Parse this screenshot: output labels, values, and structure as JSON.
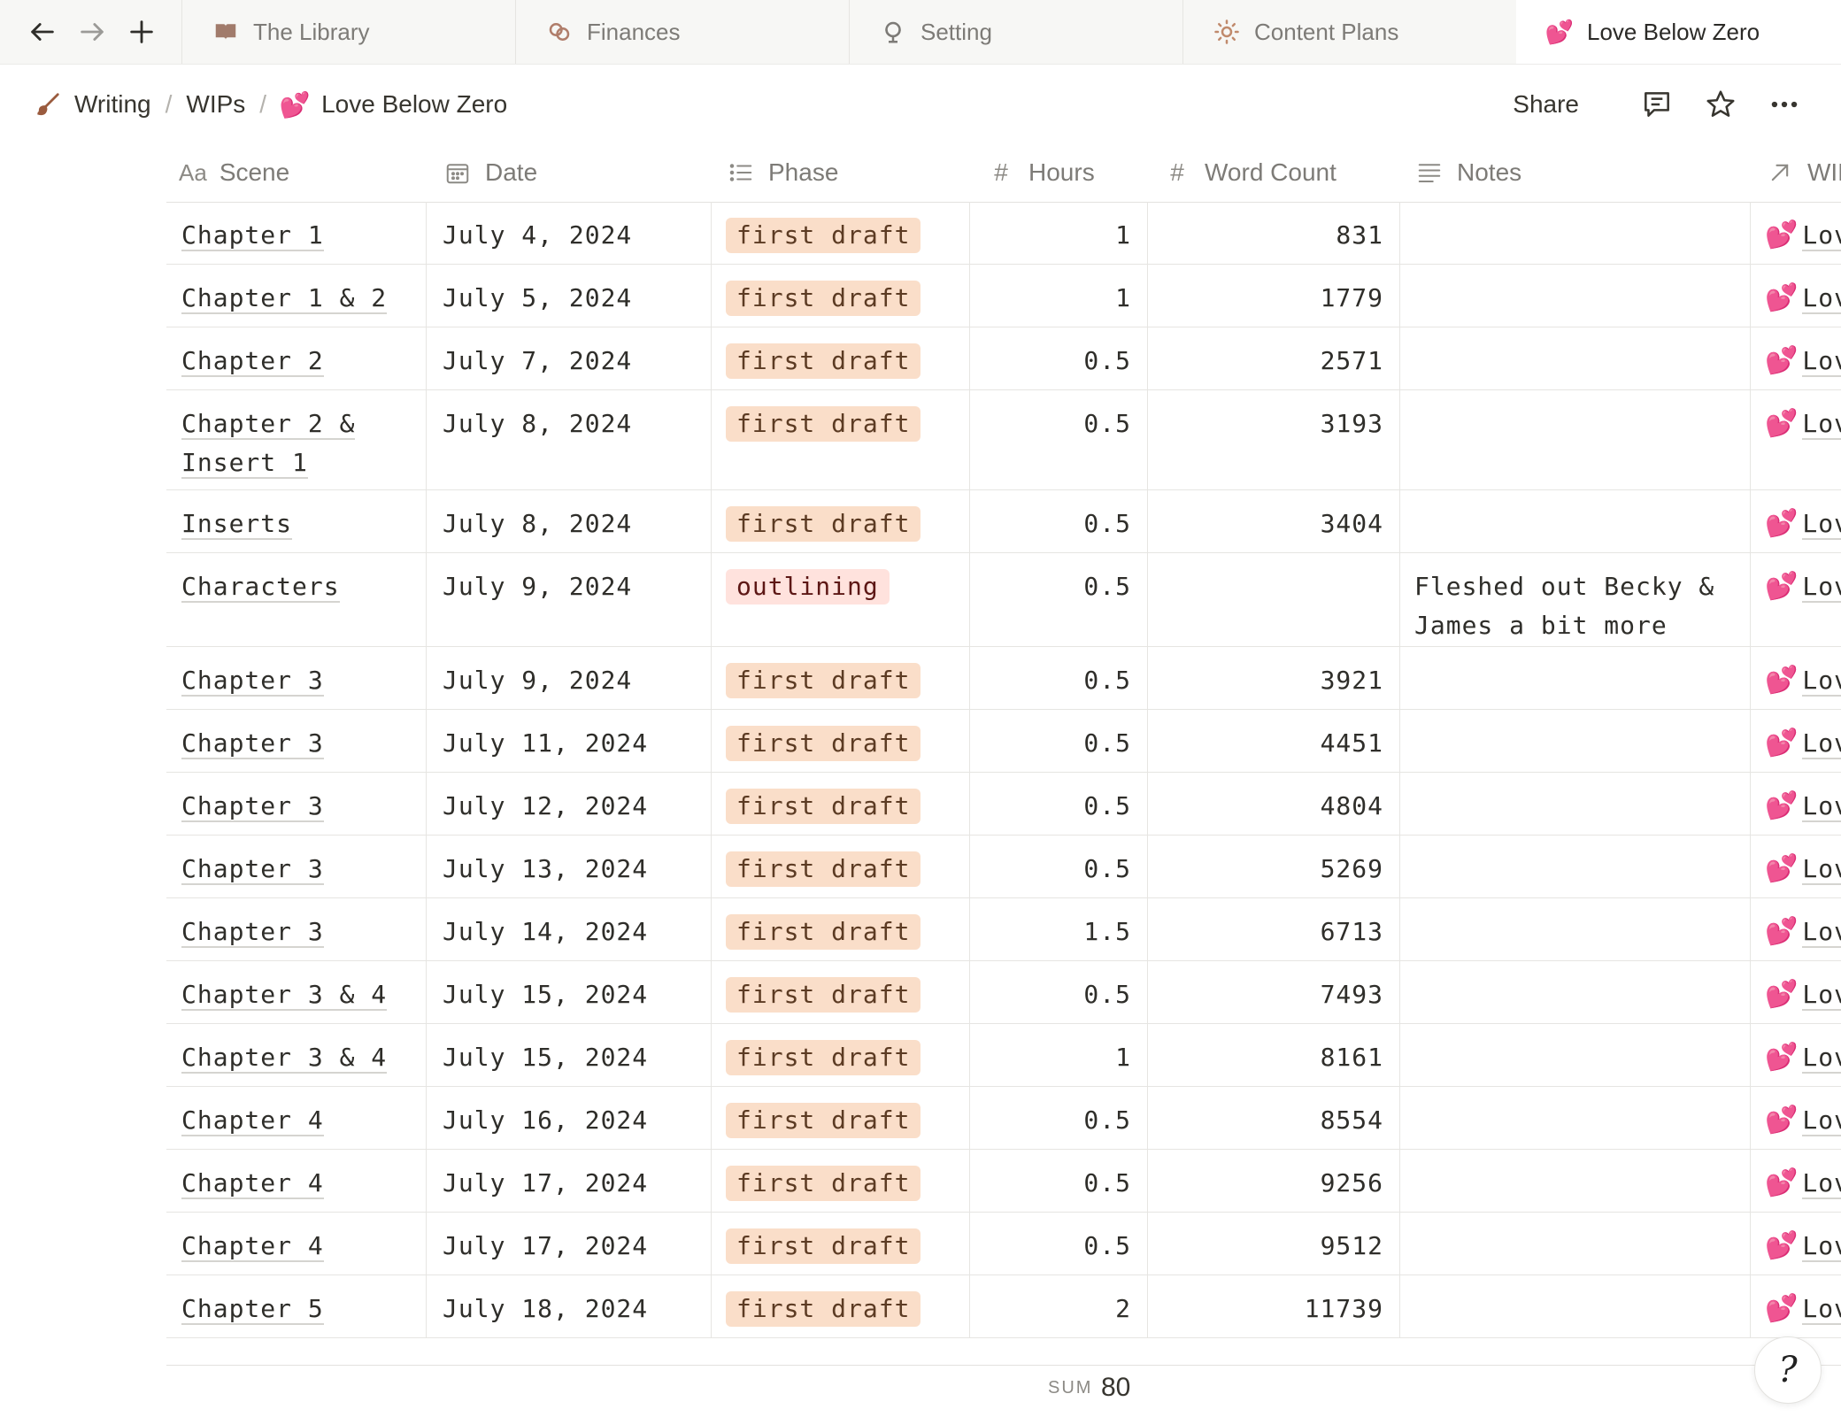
{
  "nav": {
    "back_icon": "arrow-left-icon",
    "forward_icon": "arrow-right-icon",
    "new_tab_icon": "plus-icon"
  },
  "tabs": [
    {
      "label": "The Library",
      "icon": "book-icon"
    },
    {
      "label": "Finances",
      "icon": "coins-icon"
    },
    {
      "label": "Setting",
      "icon": "globe-icon"
    },
    {
      "label": "Content Plans",
      "icon": "sun-icon"
    },
    {
      "label": "Love Below Zero",
      "icon": "💕"
    }
  ],
  "breadcrumb": {
    "items": [
      {
        "label": "Writing",
        "icon": "paintbrush-icon"
      },
      {
        "label": "WIPs"
      },
      {
        "label": "Love Below Zero",
        "icon": "💕"
      }
    ],
    "separator": "/"
  },
  "header": {
    "share_label": "Share",
    "comment_icon": "comment-icon",
    "favorite_icon": "star-icon",
    "more_icon": "more-icon"
  },
  "columns": [
    {
      "label": "Scene",
      "icon": "Aa"
    },
    {
      "label": "Date",
      "icon": "calendar-icon"
    },
    {
      "label": "Phase",
      "icon": "list-icon"
    },
    {
      "label": "Hours",
      "icon": "#"
    },
    {
      "label": "Word Count",
      "icon": "#"
    },
    {
      "label": "Notes",
      "icon": "lines-icon"
    },
    {
      "label": "WIP",
      "icon": "arrow-up-right-icon"
    }
  ],
  "phase_colors": {
    "first draft": {
      "bg": "#fadec9",
      "fg": "#5c3b23"
    },
    "outlining": {
      "bg": "#ffe2dd",
      "fg": "#5d1715"
    }
  },
  "rows": [
    {
      "scene": [
        "Chapter 1"
      ],
      "date": "July 4, 2024",
      "phase": "first draft",
      "hours": "1",
      "words": "831",
      "notes": [],
      "wip": "Love Below Zero",
      "wip_icon": "💕"
    },
    {
      "scene": [
        "Chapter 1 & 2"
      ],
      "date": "July 5, 2024",
      "phase": "first draft",
      "hours": "1",
      "words": "1779",
      "notes": [],
      "wip": "Love Below Zero",
      "wip_icon": "💕"
    },
    {
      "scene": [
        "Chapter 2"
      ],
      "date": "July 7, 2024",
      "phase": "first draft",
      "hours": "0.5",
      "words": "2571",
      "notes": [],
      "wip": "Love Below Zero",
      "wip_icon": "💕"
    },
    {
      "scene": [
        "Chapter 2 &",
        "Insert 1"
      ],
      "date": "July 8, 2024",
      "phase": "first draft",
      "hours": "0.5",
      "words": "3193",
      "notes": [],
      "wip": "Love Below Zero",
      "wip_icon": "💕"
    },
    {
      "scene": [
        "Inserts"
      ],
      "date": "July 8, 2024",
      "phase": "first draft",
      "hours": "0.5",
      "words": "3404",
      "notes": [],
      "wip": "Love Below Zero",
      "wip_icon": "💕"
    },
    {
      "scene": [
        "Characters"
      ],
      "date": "July 9, 2024",
      "phase": "outlining",
      "hours": "0.5",
      "words": "",
      "notes": [
        "Fleshed out Becky &",
        "James a bit more"
      ],
      "wip": "Love Below Zero",
      "wip_icon": "💕"
    },
    {
      "scene": [
        "Chapter 3"
      ],
      "date": "July 9, 2024",
      "phase": "first draft",
      "hours": "0.5",
      "words": "3921",
      "notes": [],
      "wip": "Love Below Zero",
      "wip_icon": "💕"
    },
    {
      "scene": [
        "Chapter 3"
      ],
      "date": "July 11, 2024",
      "phase": "first draft",
      "hours": "0.5",
      "words": "4451",
      "notes": [],
      "wip": "Love Below Zero",
      "wip_icon": "💕"
    },
    {
      "scene": [
        "Chapter 3"
      ],
      "date": "July 12, 2024",
      "phase": "first draft",
      "hours": "0.5",
      "words": "4804",
      "notes": [],
      "wip": "Love Below Zero",
      "wip_icon": "💕"
    },
    {
      "scene": [
        "Chapter 3"
      ],
      "date": "July 13, 2024",
      "phase": "first draft",
      "hours": "0.5",
      "words": "5269",
      "notes": [],
      "wip": "Love Below Zero",
      "wip_icon": "💕"
    },
    {
      "scene": [
        "Chapter 3"
      ],
      "date": "July 14, 2024",
      "phase": "first draft",
      "hours": "1.5",
      "words": "6713",
      "notes": [],
      "wip": "Love Below Zero",
      "wip_icon": "💕"
    },
    {
      "scene": [
        "Chapter 3 & 4"
      ],
      "date": "July 15, 2024",
      "phase": "first draft",
      "hours": "0.5",
      "words": "7493",
      "notes": [],
      "wip": "Love Below Zero",
      "wip_icon": "💕"
    },
    {
      "scene": [
        "Chapter 3 & 4"
      ],
      "date": "July 15, 2024",
      "phase": "first draft",
      "hours": "1",
      "words": "8161",
      "notes": [],
      "wip": "Love Below Zero",
      "wip_icon": "💕"
    },
    {
      "scene": [
        "Chapter 4"
      ],
      "date": "July 16, 2024",
      "phase": "first draft",
      "hours": "0.5",
      "words": "8554",
      "notes": [],
      "wip": "Love Below Zero",
      "wip_icon": "💕"
    },
    {
      "scene": [
        "Chapter 4"
      ],
      "date": "July 17, 2024",
      "phase": "first draft",
      "hours": "0.5",
      "words": "9256",
      "notes": [],
      "wip": "Love Below Zero",
      "wip_icon": "💕"
    },
    {
      "scene": [
        "Chapter 4"
      ],
      "date": "July 17, 2024",
      "phase": "first draft",
      "hours": "0.5",
      "words": "9512",
      "notes": [],
      "wip": "Love Below Zero",
      "wip_icon": "💕"
    },
    {
      "scene": [
        "Chapter 5"
      ],
      "date": "July 18, 2024",
      "phase": "first draft",
      "hours": "2",
      "words": "11739",
      "notes": [],
      "wip": "Love Below Zero",
      "wip_icon": "💕"
    }
  ],
  "footer": {
    "sum_label": "SUM",
    "sum_value": "80"
  },
  "help": {
    "icon": "help-icon",
    "glyph": "?"
  }
}
